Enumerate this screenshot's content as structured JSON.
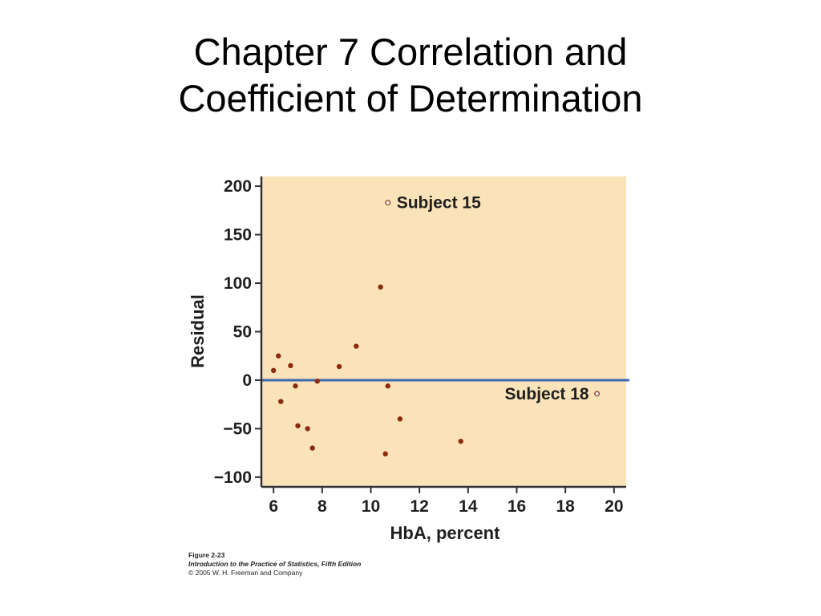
{
  "slide": {
    "title_line1": "Chapter 7 Correlation and",
    "title_line2": "Coefficient of Determination"
  },
  "caption": {
    "figure": "Figure 2-23",
    "book": "Introduction to the Practice of Statistics, Fifth Edition",
    "copyright": "© 2005 W. H. Freeman and Company"
  },
  "colors": {
    "plot_background": "#fae3b9",
    "point": "#8b2a0e",
    "zero_line": "#3f66b0",
    "axis": "#333333"
  },
  "chart_data": {
    "type": "scatter",
    "xlabel": "HbA, percent",
    "ylabel": "Residual",
    "xlim": [
      5.5,
      20.5
    ],
    "ylim": [
      -110,
      210
    ],
    "xticks": [
      6,
      8,
      10,
      12,
      14,
      16,
      18,
      20
    ],
    "yticks": [
      200,
      150,
      100,
      50,
      0,
      -50,
      -100
    ],
    "xtick_labels": [
      "6",
      "8",
      "10",
      "12",
      "14",
      "16",
      "18",
      "20"
    ],
    "ytick_labels": [
      "200",
      "150",
      "100",
      "50",
      "0",
      "−50",
      "−100"
    ],
    "reference_line_y": 0,
    "grid": false,
    "points": [
      {
        "x": 6.0,
        "y": 10
      },
      {
        "x": 6.2,
        "y": 25
      },
      {
        "x": 6.3,
        "y": -22
      },
      {
        "x": 6.7,
        "y": 15
      },
      {
        "x": 6.9,
        "y": -6
      },
      {
        "x": 7.0,
        "y": -47
      },
      {
        "x": 7.4,
        "y": -50
      },
      {
        "x": 7.6,
        "y": -70
      },
      {
        "x": 7.8,
        "y": -1
      },
      {
        "x": 8.7,
        "y": 14
      },
      {
        "x": 9.4,
        "y": 35
      },
      {
        "x": 10.4,
        "y": 96
      },
      {
        "x": 10.6,
        "y": -76
      },
      {
        "x": 10.7,
        "y": -6
      },
      {
        "x": 11.2,
        "y": -40
      },
      {
        "x": 13.7,
        "y": -63
      }
    ],
    "annotations": [
      {
        "label": "Subject 15",
        "x": 10.7,
        "y": 183,
        "marker": "open-circle"
      },
      {
        "label": "Subject 18",
        "x": 19.3,
        "y": -14,
        "marker": "open-circle"
      }
    ]
  }
}
